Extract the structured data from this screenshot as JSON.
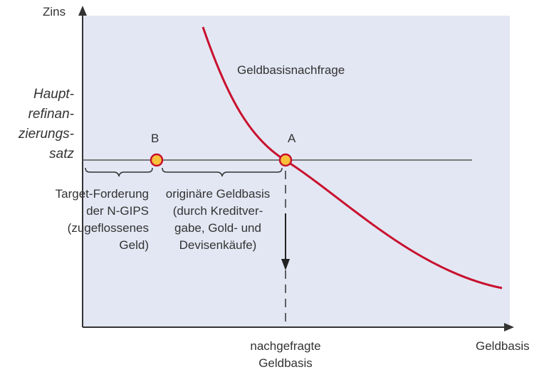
{
  "axes": {
    "y_label": "Zins",
    "x_label": "Geldbasis"
  },
  "policy_rate_label": [
    "Haupt-",
    "refinan-",
    "zierungs-",
    "satz"
  ],
  "points": {
    "b": "B",
    "a": "A"
  },
  "curve_label": "Geldbasisnachfrage",
  "left_segment_label": [
    "Target-Forderung",
    "der N-GIPS",
    "(zugeflossenes",
    "Geld)"
  ],
  "right_segment_label": [
    "originäre Geldbasis",
    "(durch Kreditver-",
    "gabe, Gold- und",
    "Devisenkäufe)"
  ],
  "x_marker_label": [
    "nachgefragte",
    "Geldbasis"
  ]
}
